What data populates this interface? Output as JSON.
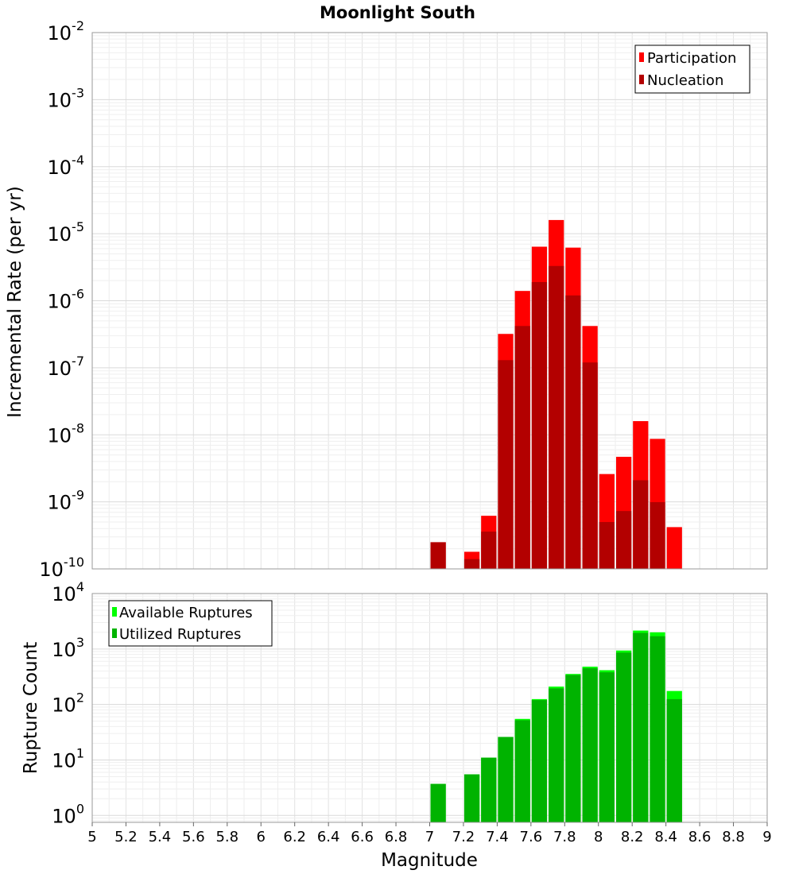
{
  "chart_data": [
    {
      "type": "bar",
      "title": "Moonlight South",
      "ylabel": "Incremental Rate (per yr)",
      "xlabel": "",
      "yscale": "log",
      "xlim": [
        5,
        9
      ],
      "ylim": [
        1e-10,
        0.01
      ],
      "y_tick_labels": [
        {
          "base": "10",
          "exp": "-2"
        },
        {
          "base": "10",
          "exp": "-3"
        },
        {
          "base": "10",
          "exp": "-4"
        },
        {
          "base": "10",
          "exp": "-5"
        },
        {
          "base": "10",
          "exp": "-6"
        },
        {
          "base": "10",
          "exp": "-7"
        },
        {
          "base": "10",
          "exp": "-8"
        },
        {
          "base": "10",
          "exp": "-9"
        },
        {
          "base": "10",
          "exp": "-10"
        }
      ],
      "legend": {
        "position": "top-right",
        "entries": [
          "Participation",
          "Nucleation"
        ]
      },
      "categories": [
        7.05,
        7.15,
        7.25,
        7.35,
        7.45,
        7.55,
        7.65,
        7.75,
        7.85,
        7.95,
        8.05,
        8.15,
        8.25,
        8.35,
        8.45
      ],
      "series": [
        {
          "name": "Participation",
          "color": "#ff0000",
          "values": [
            2.5e-10,
            null,
            1.8e-10,
            6.2e-10,
            3.2e-07,
            1.4e-06,
            6.4e-06,
            1.6e-05,
            6.2e-06,
            4.2e-07,
            2.6e-09,
            4.7e-09,
            1.6e-08,
            8.7e-09,
            4.2e-10
          ]
        },
        {
          "name": "Nucleation",
          "color": "#b30000",
          "values": [
            2.5e-10,
            null,
            1.4e-10,
            3.6e-10,
            1.3e-07,
            4.2e-07,
            1.9e-06,
            3.3e-06,
            1.2e-06,
            1.2e-07,
            5e-10,
            7.3e-10,
            2.1e-09,
            9.9e-10,
            null
          ]
        }
      ]
    },
    {
      "type": "bar",
      "title": "",
      "ylabel": "Rupture Count",
      "xlabel": "Magnitude",
      "yscale": "log",
      "xlim": [
        5,
        9
      ],
      "ylim": [
        0.75,
        10000
      ],
      "x_ticks": [
        "5",
        "5.2",
        "5.4",
        "5.6",
        "5.8",
        "6",
        "6.2",
        "6.4",
        "6.6",
        "6.8",
        "7",
        "7.2",
        "7.4",
        "7.6",
        "7.8",
        "8",
        "8.2",
        "8.4",
        "8.6",
        "8.8",
        "9"
      ],
      "y_tick_labels": [
        {
          "base": "10",
          "exp": "4"
        },
        {
          "base": "10",
          "exp": "3"
        },
        {
          "base": "10",
          "exp": "2"
        },
        {
          "base": "10",
          "exp": "1"
        },
        {
          "base": "10",
          "exp": "0"
        }
      ],
      "legend": {
        "position": "top-left",
        "entries": [
          "Available Ruptures",
          "Utilized Ruptures"
        ]
      },
      "categories": [
        7.05,
        7.15,
        7.25,
        7.35,
        7.45,
        7.55,
        7.65,
        7.75,
        7.85,
        7.95,
        8.05,
        8.15,
        8.25,
        8.35,
        8.45
      ],
      "series": [
        {
          "name": "Available Ruptures",
          "color": "#00ff00",
          "values": [
            3.7,
            null,
            5.5,
            11,
            26,
            55,
            125,
            210,
            355,
            480,
            415,
            940,
            2150,
            2000,
            175
          ]
        },
        {
          "name": "Utilized Ruptures",
          "color": "#00b300",
          "values": [
            3.7,
            null,
            5.5,
            11,
            26,
            52,
            120,
            195,
            340,
            450,
            380,
            860,
            1950,
            1700,
            125
          ]
        }
      ]
    }
  ]
}
